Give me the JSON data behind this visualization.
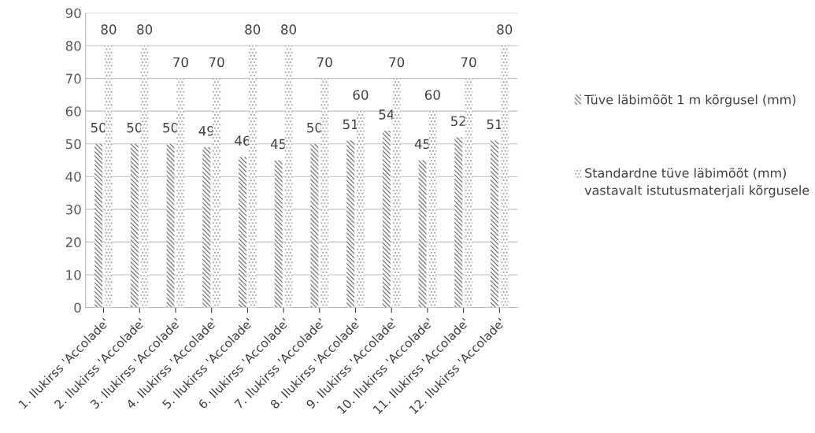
{
  "chart_data": {
    "type": "bar",
    "categories": [
      "1. Ilukirss 'Accolade'",
      "2. Ilukirss 'Accolade'",
      "3. Ilukirss 'Accolade'",
      "4. Ilukirss 'Accolade'",
      "5. Ilukirss 'Accolade'",
      "6. Ilukirss 'Accolade'",
      "7. Ilukirss 'Accolade'",
      "8. Ilukirss 'Accolade'",
      "9. Ilukirss 'Accolade'",
      "10. Ilukirss 'Accolade'",
      "11. Ilukirss 'Accolade'",
      "12. Ilukirss 'Accolade'"
    ],
    "series": [
      {
        "name": "Tüve läbimõõt 1 m kõrgusel (mm)",
        "color": "#7f7f7f",
        "values": [
          50,
          50,
          50,
          49,
          46,
          45,
          50,
          51,
          54,
          45,
          52,
          51
        ]
      },
      {
        "name": "Standardne tüve läbimõõt (mm) vastavalt istutusmaterjali kõrgusele",
        "color": "#a6a6a6",
        "values": [
          80,
          80,
          70,
          70,
          80,
          80,
          70,
          60,
          70,
          60,
          70,
          80
        ]
      }
    ],
    "ylim": [
      0,
      90
    ],
    "yticks": [
      0,
      10,
      20,
      30,
      40,
      50,
      60,
      70,
      80,
      90
    ],
    "grid": "y",
    "legend": "right",
    "data_labels": true
  }
}
